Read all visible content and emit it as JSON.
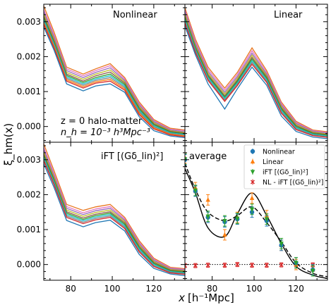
{
  "figure": {
    "ylabel": "ξ_hm(x)",
    "xlabel_main": "x",
    "xlabel_unit": "[h⁻¹Mpc]"
  },
  "chart_data": {
    "type": "line",
    "xlim": [
      67,
      135
    ],
    "ylim": [
      -0.00045,
      0.0035
    ],
    "xticks": [
      80,
      100,
      120
    ],
    "yticks": [
      0.0,
      0.001,
      0.002,
      0.003
    ],
    "xtick_labels": [
      "80",
      "100",
      "120"
    ],
    "ytick_labels": [
      "0.000",
      "0.001",
      "0.002",
      "0.003"
    ],
    "x": [
      67,
      72,
      78,
      86,
      92,
      99,
      106,
      113,
      120,
      128,
      135
    ],
    "panels": [
      {
        "id": "nonlinear",
        "title": "Nonlinear",
        "annotation": [
          "z = 0  halo-matter",
          "n_h = 10⁻³ h³Mpc⁻³"
        ],
        "series": [
          {
            "color": "#e8761e",
            "values": [
              0.00345,
              0.0027,
              0.0017,
              0.0015,
              0.00165,
              0.0018,
              0.0014,
              0.0007,
              0.0002,
              -5e-05,
              -0.0001
            ]
          },
          {
            "color": "#e377c2",
            "values": [
              0.00335,
              0.00262,
              0.00165,
              0.00145,
              0.0016,
              0.00174,
              0.00136,
              0.00066,
              0.00017,
              -8e-05,
              -0.00012
            ]
          },
          {
            "color": "#9467bd",
            "values": [
              0.00328,
              0.00256,
              0.0016,
              0.0014,
              0.00155,
              0.00168,
              0.00132,
              0.00062,
              0.00014,
              -0.0001,
              -0.00015
            ]
          },
          {
            "color": "#bcbd22",
            "values": [
              0.00322,
              0.0025,
              0.00155,
              0.00135,
              0.0015,
              0.00162,
              0.00128,
              0.00058,
              0.00011,
              -0.00012,
              -0.00017
            ]
          },
          {
            "color": "#8c564b",
            "values": [
              0.00316,
              0.00245,
              0.0015,
              0.0013,
              0.00145,
              0.00156,
              0.00124,
              0.00054,
              8e-05,
              -0.00014,
              -0.00019
            ]
          },
          {
            "color": "#2ca02c",
            "values": [
              0.0031,
              0.0024,
              0.00146,
              0.00126,
              0.0014,
              0.0015,
              0.0012,
              0.0005,
              5e-05,
              -0.00016,
              -0.00021
            ]
          },
          {
            "color": "#17becf",
            "values": [
              0.00305,
              0.00236,
              0.00142,
              0.00122,
              0.00136,
              0.00145,
              0.00116,
              0.00046,
              2e-05,
              -0.00018,
              -0.00023
            ]
          },
          {
            "color": "#7f7f7f",
            "values": [
              0.003,
              0.00232,
              0.00138,
              0.00118,
              0.00132,
              0.0014,
              0.00112,
              0.00042,
              -1e-05,
              -0.0002,
              -0.00025
            ]
          },
          {
            "color": "#ff7f0e",
            "values": [
              0.00296,
              0.00228,
              0.00134,
              0.00114,
              0.00128,
              0.00135,
              0.00108,
              0.00038,
              -4e-05,
              -0.00022,
              -0.00027
            ]
          },
          {
            "color": "#d62728",
            "values": [
              0.00292,
              0.00224,
              0.0013,
              0.0011,
              0.00124,
              0.0013,
              0.00104,
              0.00034,
              -7e-05,
              -0.00024,
              -0.00029
            ]
          },
          {
            "color": "#1f77b4",
            "values": [
              0.00285,
              0.00218,
              0.00122,
              0.00102,
              0.00116,
              0.00122,
              0.00098,
              0.00028,
              -0.00012,
              -0.00027,
              -0.00032
            ]
          }
        ]
      },
      {
        "id": "linear",
        "title": "Linear",
        "series": [
          {
            "color": "#e8761e",
            "values": [
              0.0034,
              0.0025,
              0.0017,
              0.0011,
              0.00155,
              0.00225,
              0.0016,
              0.0007,
              0.00015,
              -0.0001,
              -0.00015
            ]
          },
          {
            "color": "#e377c2",
            "values": [
              0.00334,
              0.00244,
              0.00164,
              0.00104,
              0.00149,
              0.00217,
              0.00155,
              0.00066,
              0.00012,
              -0.00012,
              -0.00017
            ]
          },
          {
            "color": "#9467bd",
            "values": [
              0.00328,
              0.00238,
              0.00158,
              0.00098,
              0.00143,
              0.0021,
              0.0015,
              0.00062,
              9e-05,
              -0.00014,
              -0.00019
            ]
          },
          {
            "color": "#bcbd22",
            "values": [
              0.00322,
              0.00233,
              0.00153,
              0.00093,
              0.00138,
              0.00204,
              0.00146,
              0.00058,
              6e-05,
              -0.00016,
              -0.00021
            ]
          },
          {
            "color": "#8c564b",
            "values": [
              0.00316,
              0.00228,
              0.00148,
              0.00088,
              0.00133,
              0.00198,
              0.00142,
              0.00054,
              3e-05,
              -0.00018,
              -0.00023
            ]
          },
          {
            "color": "#2ca02c",
            "values": [
              0.00311,
              0.00224,
              0.00144,
              0.00084,
              0.00129,
              0.00193,
              0.00138,
              0.0005,
              0.0,
              -0.0002,
              -0.00025
            ]
          },
          {
            "color": "#17becf",
            "values": [
              0.00306,
              0.0022,
              0.0014,
              0.0008,
              0.00125,
              0.00188,
              0.00134,
              0.00046,
              -3e-05,
              -0.00022,
              -0.00027
            ]
          },
          {
            "color": "#7f7f7f",
            "values": [
              0.00301,
              0.00216,
              0.00136,
              0.00076,
              0.00121,
              0.00183,
              0.0013,
              0.00042,
              -6e-05,
              -0.00024,
              -0.00029
            ]
          },
          {
            "color": "#d62728",
            "values": [
              0.00296,
              0.00212,
              0.00132,
              0.00072,
              0.00117,
              0.00178,
              0.00126,
              0.00038,
              -9e-05,
              -0.00026,
              -0.00031
            ]
          },
          {
            "color": "#1f77b4",
            "values": [
              0.00288,
              0.00205,
              0.00122,
              0.0005,
              0.00108,
              0.0017,
              0.00118,
              0.0003,
              -0.00014,
              -0.0003,
              -0.00035
            ]
          }
        ]
      },
      {
        "id": "ift",
        "title": "iFT [(Gδ_lin)²]",
        "series": [
          {
            "color": "#e8761e",
            "values": [
              0.00345,
              0.00268,
              0.00172,
              0.00155,
              0.00165,
              0.00172,
              0.00135,
              0.00068,
              0.00018,
              -8e-05,
              -0.00012
            ]
          },
          {
            "color": "#e377c2",
            "values": [
              0.00335,
              0.0026,
              0.00166,
              0.00148,
              0.00159,
              0.00166,
              0.00131,
              0.00064,
              0.00015,
              -0.0001,
              -0.00014
            ]
          },
          {
            "color": "#9467bd",
            "values": [
              0.00328,
              0.00254,
              0.00161,
              0.00143,
              0.00154,
              0.00161,
              0.00127,
              0.0006,
              0.00012,
              -0.00012,
              -0.00016
            ]
          },
          {
            "color": "#bcbd22",
            "values": [
              0.00322,
              0.00249,
              0.00156,
              0.00138,
              0.00149,
              0.00156,
              0.00123,
              0.00056,
              9e-05,
              -0.00014,
              -0.00018
            ]
          },
          {
            "color": "#8c564b",
            "values": [
              0.00316,
              0.00244,
              0.00151,
              0.00133,
              0.00144,
              0.00151,
              0.00119,
              0.00052,
              6e-05,
              -0.00016,
              -0.0002
            ]
          },
          {
            "color": "#2ca02c",
            "values": [
              0.00311,
              0.0024,
              0.00147,
              0.00129,
              0.0014,
              0.00147,
              0.00115,
              0.00048,
              3e-05,
              -0.00018,
              -0.00022
            ]
          },
          {
            "color": "#17becf",
            "values": [
              0.00306,
              0.00236,
              0.00143,
              0.00125,
              0.00136,
              0.00143,
              0.00111,
              0.00044,
              0.0,
              -0.0002,
              -0.00024
            ]
          },
          {
            "color": "#7f7f7f",
            "values": [
              0.00301,
              0.00232,
              0.00139,
              0.00121,
              0.00132,
              0.00139,
              0.00107,
              0.0004,
              -3e-05,
              -0.00022,
              -0.00026
            ]
          },
          {
            "color": "#d62728",
            "values": [
              0.00296,
              0.00228,
              0.00135,
              0.00117,
              0.00128,
              0.00135,
              0.00103,
              0.00036,
              -6e-05,
              -0.00024,
              -0.00028
            ]
          },
          {
            "color": "#1f77b4",
            "values": [
              0.00288,
              0.0022,
              0.00126,
              0.00108,
              0.0012,
              0.00127,
              0.00096,
              0.00029,
              -0.00011,
              -0.00027,
              -0.00032
            ]
          }
        ]
      },
      {
        "id": "average",
        "title": "average",
        "curve_solid": [
          0.00275,
          0.00205,
          0.00105,
          0.0008,
          0.00145,
          0.00205,
          0.0014,
          0.0006,
          -5e-05,
          -0.0003,
          -0.0004
        ],
        "curve_dashed": [
          0.0029,
          0.00215,
          0.0015,
          0.00125,
          0.0014,
          0.00165,
          0.0012,
          0.00065,
          5e-05,
          -0.00025,
          -0.00035
        ],
        "legend": [
          {
            "label": "Nonlinear",
            "color": "#1f77b4",
            "marker": "circle"
          },
          {
            "label": "Linear",
            "color": "#ff7f0e",
            "marker": "triangle-up"
          },
          {
            "label": "iFT [(Gδ_lin)²]",
            "color": "#2ca02c",
            "marker": "triangle-down"
          },
          {
            "label": "NL - iFT [(Gδ_lin)²]",
            "color": "#d62728",
            "marker": "x"
          }
        ],
        "points_x": [
          67,
          72,
          78,
          86,
          92,
          99,
          106,
          113,
          120,
          128
        ],
        "nonlinear": [
          0.003,
          0.0021,
          0.00135,
          0.00122,
          0.0013,
          0.0015,
          0.00125,
          0.00055,
          5e-05,
          -0.00015
        ],
        "linear": [
          0.00305,
          0.0022,
          0.00185,
          0.00085,
          0.00135,
          0.0019,
          0.0014,
          0.00055,
          0.0,
          -0.00015
        ],
        "ift": [
          0.00302,
          0.00212,
          0.00138,
          0.00125,
          0.00132,
          0.00158,
          0.0013,
          0.0006,
          5e-05,
          -0.00018
        ],
        "nl_minus_ift": [
          -3e-05,
          -3e-05,
          -2e-05,
          -2e-05,
          0.0,
          -2e-05,
          -2e-05,
          -1e-05,
          0.0,
          -1e-05
        ],
        "error": 0.00015
      }
    ]
  }
}
